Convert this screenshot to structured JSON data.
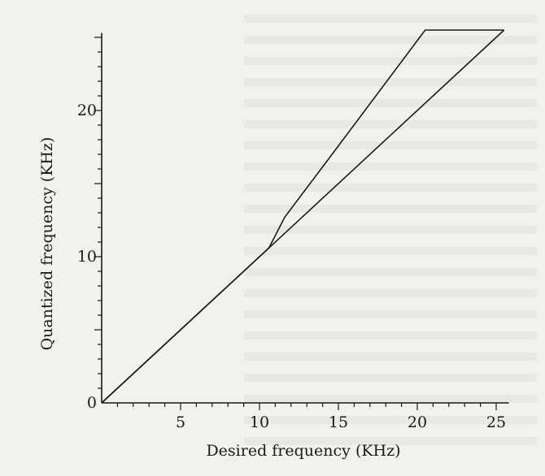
{
  "chart_data": {
    "type": "line",
    "title": "",
    "xlabel": "Desired frequency (KHz)",
    "ylabel": "Quantized frequency (KHz)",
    "xlim": [
      0,
      25
    ],
    "ylim": [
      0,
      25
    ],
    "xticks": [
      5,
      10,
      15,
      20,
      25
    ],
    "yticks": [
      0,
      10,
      20
    ],
    "grid": false,
    "legend": "none",
    "series": [
      {
        "values_x": [
          0,
          25.5
        ],
        "values_y": [
          0,
          25.5
        ],
        "style": "diagonal"
      },
      {
        "values_x": [
          0,
          4.0,
          4.0,
          4.5,
          4.5,
          5.0,
          5.0,
          5.6,
          5.6,
          6.2,
          6.2,
          6.8,
          6.8,
          7.5,
          7.5,
          8.4,
          8.4,
          9.4,
          9.4,
          10.6,
          10.6,
          11.6,
          11.6,
          14.6,
          14.6,
          20.5,
          20.5,
          25.5
        ],
        "values_y": [
          0,
          4.0,
          4.0,
          4.5,
          4.5,
          5.0,
          5.0,
          5.6,
          5.6,
          6.2,
          6.2,
          6.8,
          6.8,
          7.5,
          7.5,
          8.4,
          8.4,
          9.4,
          9.4,
          10.6,
          10.6,
          12.7,
          12.7,
          17.0,
          17.0,
          25.5,
          25.5,
          25.5
        ],
        "style": "staircase"
      }
    ],
    "colors": {
      "line": "#1a1a1a",
      "background": "#f3f1ec"
    }
  }
}
